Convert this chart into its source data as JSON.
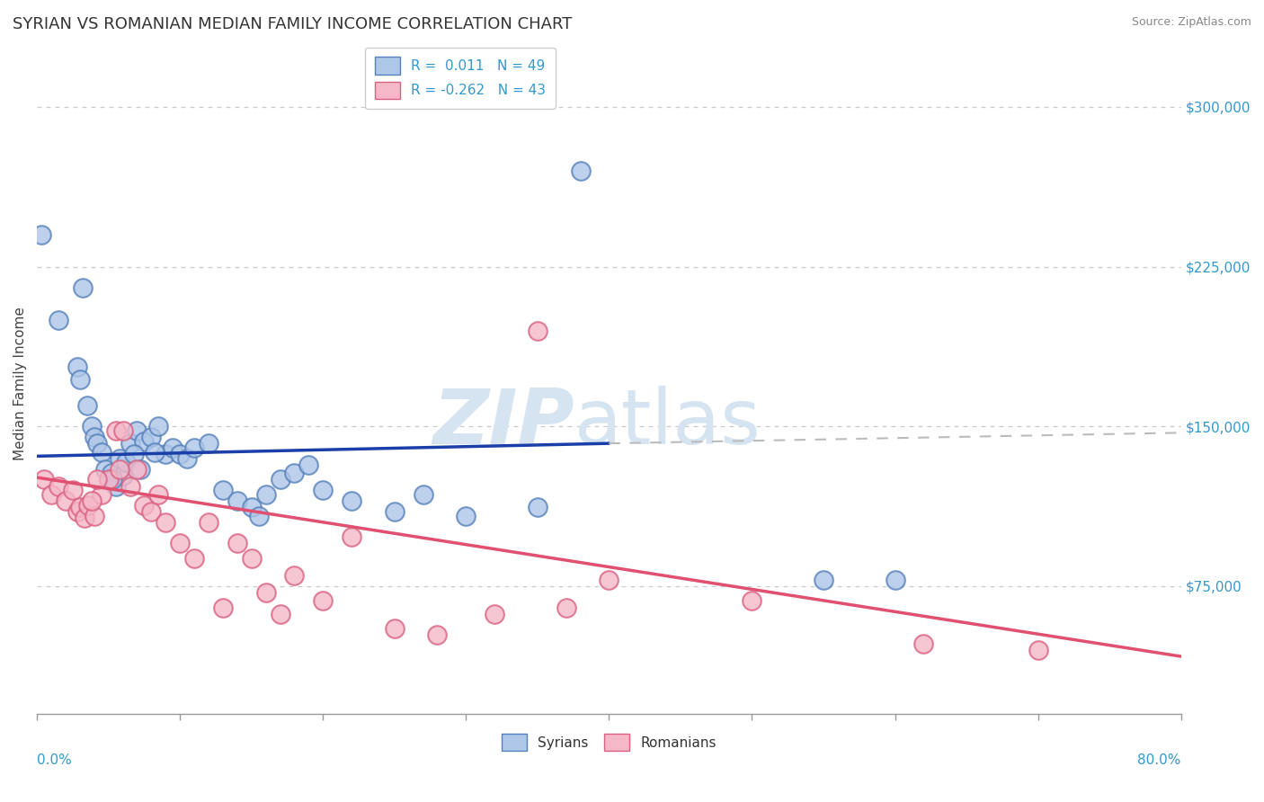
{
  "title": "SYRIAN VS ROMANIAN MEDIAN FAMILY INCOME CORRELATION CHART",
  "source": "Source: ZipAtlas.com",
  "ylabel": "Median Family Income",
  "y_ticks": [
    75000,
    150000,
    225000,
    300000
  ],
  "y_tick_labels": [
    "$75,000",
    "$150,000",
    "$225,000",
    "$300,000"
  ],
  "x_range": [
    0.0,
    80.0
  ],
  "y_range": [
    15000,
    325000
  ],
  "syrian_color": "#aec6e8",
  "romanian_color": "#f5b8c8",
  "syrian_edge": "#5580bb",
  "romanian_edge": "#d96080",
  "trend_syrian_color": "#1a3fa8",
  "trend_romanian_color": "#e05070",
  "dashed_line_color": "#bbbbbb",
  "dashed_line_y": 137000,
  "legend_label_syrian": "R =  0.011   N = 49",
  "legend_label_romanian": "R = -0.262   N = 43",
  "watermark_zip": "ZIP",
  "watermark_atlas": "atlas",
  "watermark_color": "#d5e4f0",
  "background_color": "#ffffff",
  "grid_color": "#cccccc",
  "syrian_x": [
    0.3,
    1.5,
    2.8,
    3.0,
    3.2,
    3.5,
    3.8,
    4.0,
    4.2,
    4.5,
    4.8,
    5.0,
    5.2,
    5.5,
    5.8,
    6.0,
    6.2,
    6.5,
    7.0,
    7.5,
    8.0,
    8.5,
    9.0,
    9.5,
    10.0,
    10.5,
    11.0,
    12.0,
    13.0,
    14.0,
    15.0,
    15.5,
    16.0,
    17.0,
    18.0,
    19.0,
    20.0,
    22.0,
    25.0,
    27.0,
    30.0,
    35.0,
    38.0,
    55.0,
    60.0,
    5.3,
    6.8,
    7.2,
    8.2
  ],
  "syrian_y": [
    240000,
    200000,
    178000,
    172000,
    215000,
    160000,
    150000,
    145000,
    142000,
    138000,
    130000,
    125000,
    128000,
    122000,
    135000,
    127000,
    133000,
    142000,
    148000,
    143000,
    145000,
    150000,
    137000,
    140000,
    137000,
    135000,
    140000,
    142000,
    120000,
    115000,
    112000,
    108000,
    118000,
    125000,
    128000,
    132000,
    120000,
    115000,
    110000,
    118000,
    108000,
    112000,
    270000,
    78000,
    78000,
    125000,
    137000,
    130000,
    138000
  ],
  "romanian_x": [
    0.5,
    1.0,
    1.5,
    2.0,
    2.5,
    2.8,
    3.0,
    3.3,
    3.6,
    4.0,
    4.5,
    5.0,
    5.5,
    6.0,
    6.5,
    7.0,
    7.5,
    8.0,
    8.5,
    9.0,
    10.0,
    11.0,
    12.0,
    13.0,
    14.0,
    15.0,
    16.0,
    17.0,
    18.0,
    20.0,
    22.0,
    25.0,
    28.0,
    32.0,
    37.0,
    40.0,
    50.0,
    62.0,
    70.0,
    3.8,
    4.2,
    5.8,
    35.0
  ],
  "romanian_y": [
    125000,
    118000,
    122000,
    115000,
    120000,
    110000,
    112000,
    107000,
    113000,
    108000,
    118000,
    125000,
    148000,
    148000,
    122000,
    130000,
    113000,
    110000,
    118000,
    105000,
    95000,
    88000,
    105000,
    65000,
    95000,
    88000,
    72000,
    62000,
    80000,
    68000,
    98000,
    55000,
    52000,
    62000,
    65000,
    78000,
    68000,
    48000,
    45000,
    115000,
    125000,
    130000,
    195000
  ],
  "trend_syrian_solid_end": 40.0,
  "trend_romanian_full": true
}
